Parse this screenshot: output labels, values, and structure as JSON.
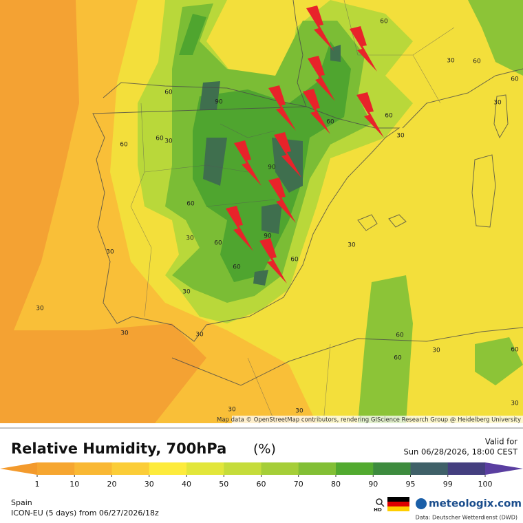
{
  "map": {
    "attribution": "Map data © OpenStreetMap contributors, rendering GIScience Research Group @ Heidelberg University",
    "contour_labels": [
      90,
      60,
      60,
      60,
      30,
      90,
      60,
      30,
      60,
      90,
      60,
      60,
      30,
      30,
      30,
      30,
      30,
      60,
      30,
      60,
      30,
      60,
      30,
      60,
      30,
      60,
      60,
      60,
      30,
      60,
      30,
      30,
      30
    ],
    "colorbar": {
      "ticks": [
        1,
        10,
        20,
        30,
        40,
        50,
        60,
        70,
        80,
        90,
        95,
        99,
        100
      ],
      "colors": [
        "#f39a2c",
        "#f6a630",
        "#f9b834",
        "#fbcd38",
        "#fdeb3c",
        "#e2e63a",
        "#c5dc3a",
        "#a5ce38",
        "#82bf35",
        "#52aa2f",
        "#3d8b3e",
        "#3f6068",
        "#443f7f",
        "#5a3ea0"
      ]
    }
  },
  "legend": {
    "title": "Relative Humidity, 700hPa",
    "unit": "(%)",
    "valid_label": "Valid for",
    "valid_time": "Sun 06/28/2026, 18:00 CEST",
    "region": "Spain",
    "model": "ICON-EU (5 days) from 06/27/2026/18z",
    "hd": "HD",
    "brand": "meteologix.com",
    "source": "Data: Deutscher Wetterdienst (DWD)"
  }
}
